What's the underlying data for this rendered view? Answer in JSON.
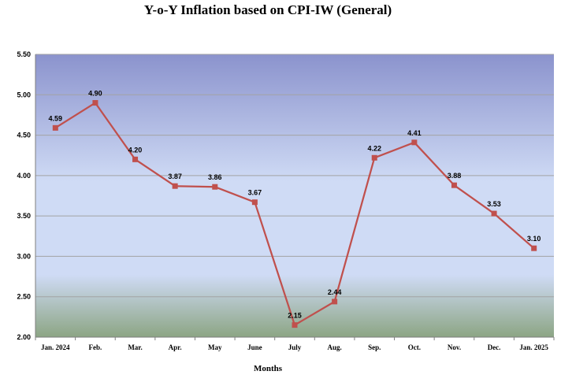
{
  "chart_data": {
    "type": "line",
    "title": "Y-o-Y Inflation based on CPI-IW (General)",
    "xlabel": "Months",
    "ylabel": "",
    "categories": [
      "Jan. 2024",
      "Feb.",
      "Mar.",
      "Apr.",
      "May",
      "June",
      "July",
      "Aug.",
      "Sep.",
      "Oct.",
      "Nov.",
      "Dec.",
      "Jan. 2025"
    ],
    "series": [
      {
        "values": [
          4.59,
          4.9,
          4.2,
          3.87,
          3.86,
          3.67,
          2.15,
          2.44,
          4.22,
          4.41,
          3.88,
          3.53,
          3.1
        ],
        "labels": [
          "4.59",
          "4.90",
          "4.20",
          "3.87",
          "3.86",
          "3.67",
          "2.15",
          "2.44",
          "4.22",
          "4.41",
          "3.88",
          "3.53",
          "3.10"
        ]
      }
    ],
    "ylim": [
      2.0,
      5.5
    ],
    "yticks": [
      "2.00",
      "2.50",
      "3.00",
      "3.50",
      "4.00",
      "4.50",
      "5.00",
      "5.50"
    ],
    "grid": true,
    "legend": "none",
    "colors": {
      "line": "#c0504d",
      "marker": "#c0504d",
      "bg_top": "#8b93cd",
      "bg_mid": "#cfdbf5",
      "bg_bottom": "#8ca584",
      "gridline": "#a3a3a3"
    }
  }
}
